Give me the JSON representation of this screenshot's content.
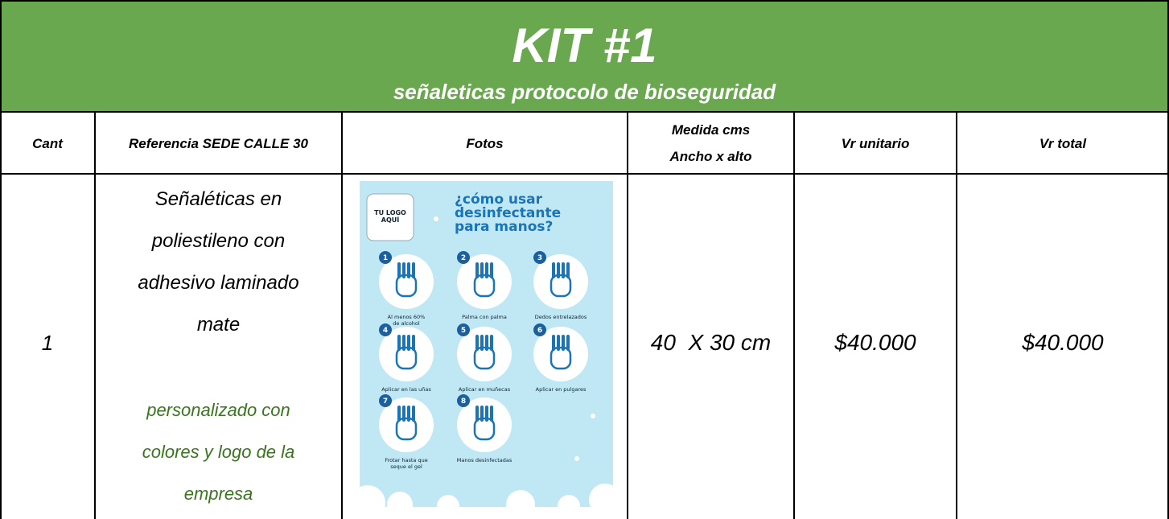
{
  "header": {
    "title": "KIT #1",
    "subtitle": "señaleticas protocolo de bioseguridad"
  },
  "table": {
    "columns": [
      "Cant",
      "Referencia SEDE CALLE 30",
      "Fotos",
      [
        "Medida cms",
        "Ancho x alto"
      ],
      "Vr unitario",
      "Vr total"
    ],
    "rows": [
      {
        "cant": "1",
        "reference": [
          "Señaléticas en",
          "poliestileno con",
          "adhesivo laminado",
          "mate"
        ],
        "note": [
          "personalizado con",
          "colores y logo de la",
          "empresa"
        ],
        "size": "40  X 30 cm",
        "unit_price": "$40.000",
        "total": "$40.000"
      }
    ]
  },
  "poster": {
    "logo": [
      "TU LOGO",
      "AQUÍ"
    ],
    "title": [
      "¿cómo usar",
      "desinfectante",
      "para manos?"
    ],
    "steps": [
      {
        "number": "1",
        "label": [
          "Al menos 60%",
          "de alcohol"
        ]
      },
      {
        "number": "2",
        "label": [
          "Palma con palma"
        ]
      },
      {
        "number": "3",
        "label": [
          "Dedos entrelazados"
        ]
      },
      {
        "number": "4",
        "label": [
          "Aplicar en las uñas"
        ]
      },
      {
        "number": "5",
        "label": [
          "Aplicar en muñecas"
        ]
      },
      {
        "number": "6",
        "label": [
          "Aplicar en pulgares"
        ]
      },
      {
        "number": "7",
        "label": [
          "Frotar hasta que",
          "seque el gel"
        ]
      },
      {
        "number": "8",
        "label": [
          "Manos desinfectadas"
        ]
      }
    ]
  }
}
